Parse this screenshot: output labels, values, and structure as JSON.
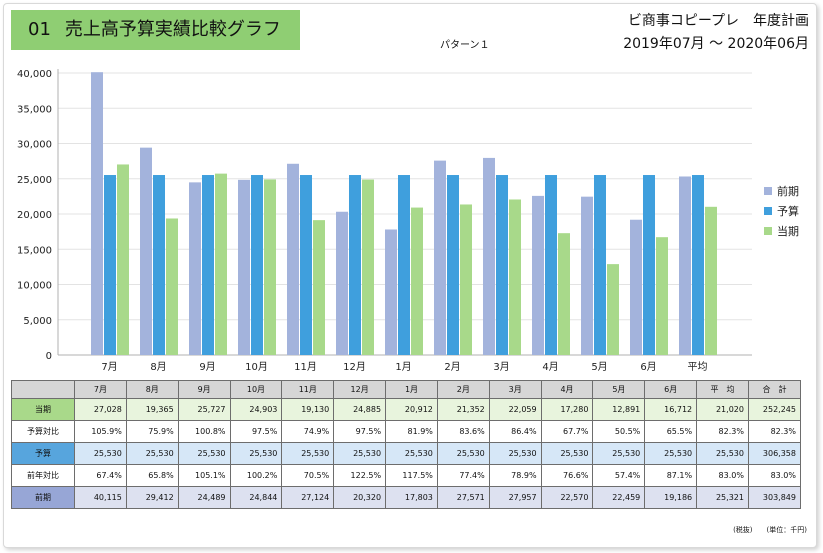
{
  "header": {
    "number": "01",
    "title": "売上高予算実績比較グラフ",
    "company": "ビ商事コピープレ　年度計画",
    "period": "2019年07月 〜 2020年06月",
    "pattern": "パターン１"
  },
  "colors": {
    "prev": "#a3b3dc",
    "budget": "#3f9fdd",
    "actual": "#a8d98a"
  },
  "chart_data": {
    "type": "bar",
    "categories": [
      "7月",
      "8月",
      "9月",
      "10月",
      "11月",
      "12月",
      "1月",
      "2月",
      "3月",
      "4月",
      "5月",
      "6月",
      "平均"
    ],
    "series": [
      {
        "name": "前期",
        "values": [
          40115,
          29412,
          24489,
          24844,
          27124,
          20320,
          17803,
          27571,
          27957,
          22570,
          22459,
          19186,
          25321
        ]
      },
      {
        "name": "予算",
        "values": [
          25530,
          25530,
          25530,
          25530,
          25530,
          25530,
          25530,
          25530,
          25530,
          25530,
          25530,
          25530,
          25530
        ]
      },
      {
        "name": "当期",
        "values": [
          27028,
          19365,
          25727,
          24903,
          19130,
          24885,
          20912,
          21352,
          22059,
          17280,
          12891,
          16712,
          21020
        ]
      }
    ],
    "ylim": [
      0,
      40000
    ],
    "yticks": [
      "0",
      "5,000",
      "10,000",
      "15,000",
      "20,000",
      "25,000",
      "30,000",
      "35,000",
      "40,000"
    ],
    "legend": [
      "前期",
      "予算",
      "当期"
    ],
    "legend_position": "right"
  },
  "table": {
    "columns": [
      "",
      "7月",
      "8月",
      "9月",
      "10月",
      "11月",
      "12月",
      "1月",
      "2月",
      "3月",
      "4月",
      "5月",
      "6月",
      "平　均",
      "合　計"
    ],
    "rows": [
      {
        "cls": "r-actual",
        "label": "当期",
        "values": [
          "27,028",
          "19,365",
          "25,727",
          "24,903",
          "19,130",
          "24,885",
          "20,912",
          "21,352",
          "22,059",
          "17,280",
          "12,891",
          "16,712",
          "21,020",
          "252,245"
        ]
      },
      {
        "cls": "r-ratio",
        "label": "予算対比",
        "values": [
          "105.9%",
          "75.9%",
          "100.8%",
          "97.5%",
          "74.9%",
          "97.5%",
          "81.9%",
          "83.6%",
          "86.4%",
          "67.7%",
          "50.5%",
          "65.5%",
          "82.3%",
          "82.3%"
        ]
      },
      {
        "cls": "r-budget",
        "label": "予算",
        "values": [
          "25,530",
          "25,530",
          "25,530",
          "25,530",
          "25,530",
          "25,530",
          "25,530",
          "25,530",
          "25,530",
          "25,530",
          "25,530",
          "25,530",
          "25,530",
          "306,358"
        ]
      },
      {
        "cls": "r-ratio",
        "label": "前年対比",
        "values": [
          "67.4%",
          "65.8%",
          "105.1%",
          "100.2%",
          "70.5%",
          "122.5%",
          "117.5%",
          "77.4%",
          "78.9%",
          "76.6%",
          "57.4%",
          "87.1%",
          "83.0%",
          "83.0%"
        ]
      },
      {
        "cls": "r-prev",
        "label": "前期",
        "values": [
          "40,115",
          "29,412",
          "24,489",
          "24,844",
          "27,124",
          "20,320",
          "17,803",
          "27,571",
          "27,957",
          "22,570",
          "22,459",
          "19,186",
          "25,321",
          "303,849"
        ]
      }
    ]
  },
  "footer": {
    "tax": "(税抜)",
    "unit": "(単位：千円)"
  }
}
